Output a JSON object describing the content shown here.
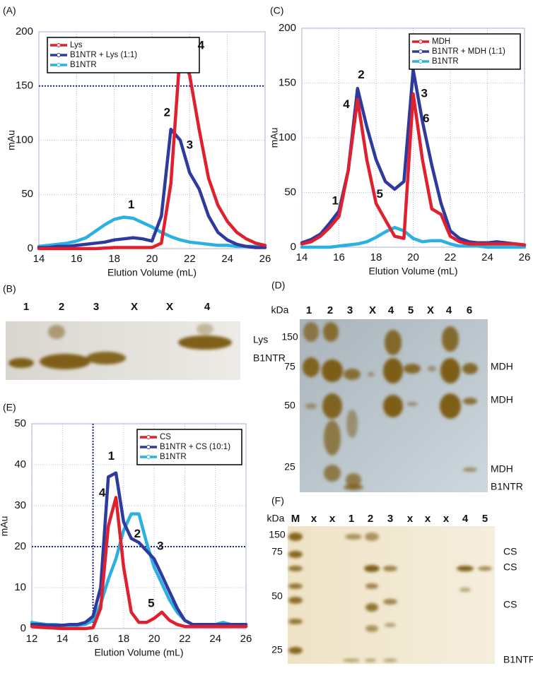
{
  "chart_data": [
    {
      "type": "line",
      "panel": "(A)",
      "xlabel": "Elution Volume (mL)",
      "ylabel": "mAu",
      "xlim": [
        14,
        26
      ],
      "ylim": [
        0,
        200
      ],
      "xticks": [
        14,
        16,
        18,
        20,
        22,
        24,
        26
      ],
      "yticks": [
        0,
        50,
        100,
        150,
        200
      ],
      "grid": true,
      "hline": 150,
      "legend": "upper left",
      "x": [
        14,
        14.5,
        15,
        15.5,
        16,
        16.5,
        17,
        17.5,
        18,
        18.5,
        19,
        19.5,
        20,
        20.5,
        21,
        21.5,
        22,
        22.5,
        23,
        23.5,
        24,
        24.5,
        25,
        25.5,
        26
      ],
      "series": [
        {
          "name": "Lys",
          "color": "#e0202e",
          "values": [
            0,
            0,
            0,
            0,
            0,
            0,
            0,
            0.5,
            1,
            1,
            1,
            1,
            1,
            5,
            60,
            183,
            160,
            110,
            65,
            40,
            25,
            15,
            9,
            5,
            3
          ]
        },
        {
          "name": "B1NTR + Lys (1:1)",
          "color": "#2e3b9c",
          "values": [
            1,
            1,
            2,
            2,
            3,
            4,
            5,
            6,
            8,
            9,
            10,
            9,
            7,
            30,
            110,
            100,
            70,
            55,
            30,
            15,
            8,
            4,
            2,
            1,
            1
          ]
        },
        {
          "name": "B1NTR",
          "color": "#2bb0e2",
          "values": [
            2,
            3,
            4,
            5,
            7,
            10,
            16,
            22,
            27,
            29,
            28,
            24,
            20,
            15,
            11,
            8,
            6,
            5,
            4,
            3,
            3,
            2,
            2,
            2,
            1
          ]
        }
      ],
      "annotations": [
        {
          "text": "1",
          "color": "#2bb0e2"
        },
        {
          "text": "2",
          "color": "#2e3b9c"
        },
        {
          "text": "3",
          "color": "#2e3b9c"
        },
        {
          "text": "4",
          "color": "#e0202e"
        }
      ]
    },
    {
      "type": "line",
      "panel": "(C)",
      "xlabel": "Elution Volume (mL)",
      "ylabel": "mAu",
      "xlim": [
        14,
        26
      ],
      "ylim": [
        0,
        200
      ],
      "xticks": [
        14,
        16,
        18,
        20,
        22,
        24,
        26
      ],
      "yticks": [
        0,
        50,
        100,
        150,
        200
      ],
      "grid": true,
      "legend": "upper right",
      "x": [
        14,
        14.5,
        15,
        15.5,
        16,
        16.5,
        17,
        17.5,
        18,
        18.5,
        19,
        19.5,
        20,
        20.5,
        21,
        21.5,
        22,
        22.5,
        23,
        23.5,
        24,
        24.5,
        25,
        25.5,
        26
      ],
      "series": [
        {
          "name": "MDH",
          "color": "#e0202e",
          "values": [
            3,
            5,
            10,
            18,
            28,
            70,
            135,
            80,
            40,
            25,
            10,
            8,
            140,
            80,
            35,
            30,
            10,
            5,
            3,
            3,
            3,
            3,
            3,
            3,
            2
          ]
        },
        {
          "name": "B1NTR + MDH (1:1)",
          "color": "#2e3b9c",
          "values": [
            4,
            7,
            12,
            22,
            33,
            70,
            145,
            110,
            80,
            60,
            53,
            60,
            162,
            115,
            75,
            40,
            15,
            8,
            5,
            4,
            4,
            5,
            4,
            3,
            2
          ]
        },
        {
          "name": "B1NTR",
          "color": "#2bb0e2",
          "values": [
            0,
            0,
            0,
            0,
            1,
            2,
            3,
            5,
            9,
            14,
            18,
            15,
            8,
            5,
            6,
            6,
            3,
            1,
            1,
            1,
            0,
            0,
            0,
            0,
            0
          ]
        }
      ],
      "annotations": [
        {
          "text": "1",
          "color": "#2e3b9c"
        },
        {
          "text": "2",
          "color": "#2e3b9c"
        },
        {
          "text": "3",
          "color": "#2e3b9c"
        },
        {
          "text": "4",
          "color": "#e0202e"
        },
        {
          "text": "5",
          "color": "#e0202e"
        },
        {
          "text": "6",
          "color": "#e0202e"
        }
      ]
    },
    {
      "type": "line",
      "panel": "(E)",
      "xlabel": "Elution Volume (mL)",
      "ylabel": "mAu",
      "xlim": [
        12,
        26
      ],
      "ylim": [
        0,
        50
      ],
      "xticks": [
        12,
        14,
        16,
        18,
        20,
        22,
        24,
        26
      ],
      "yticks": [
        0,
        10,
        20,
        30,
        40,
        50
      ],
      "grid": true,
      "hline": 20,
      "vline": 16,
      "legend": "upper right",
      "x": [
        12,
        12.5,
        13,
        13.5,
        14,
        14.5,
        15,
        15.5,
        16,
        16.5,
        17,
        17.5,
        18,
        18.5,
        19,
        19.5,
        20,
        20.5,
        21,
        21.5,
        22,
        22.5,
        23,
        23.5,
        24,
        24.5,
        25,
        25.5,
        26
      ],
      "series": [
        {
          "name": "CS",
          "color": "#e0202e",
          "values": [
            0.5,
            0.3,
            0.2,
            0.1,
            0,
            0,
            0,
            0,
            0.2,
            5,
            25,
            32,
            15,
            4,
            1.5,
            1.5,
            2.5,
            4,
            2,
            1,
            0.5,
            0.5,
            0.5,
            0.5,
            0.5,
            0.5,
            0.5,
            0.5,
            0.5
          ]
        },
        {
          "name": "B1NTR + CS (10:1)",
          "color": "#2e3b9c",
          "values": [
            1,
            1,
            0.8,
            0.8,
            0.8,
            1,
            1,
            1.5,
            3,
            10,
            37,
            38,
            26,
            22,
            21,
            19,
            17,
            13,
            9,
            5,
            2,
            1,
            1,
            1,
            1,
            1,
            1,
            1,
            1
          ]
        },
        {
          "name": "B1NTR",
          "color": "#2bb0e2",
          "values": [
            1.5,
            1.2,
            1,
            1,
            0.8,
            0.8,
            0.8,
            1,
            2,
            6,
            12,
            17,
            24,
            28,
            28,
            21,
            15,
            11,
            7,
            4,
            2,
            1,
            1,
            1,
            1,
            1.5,
            1,
            1,
            1
          ]
        }
      ],
      "annotations": [
        {
          "text": "1",
          "color": "#2e3b9c"
        },
        {
          "text": "2",
          "color": "#2e3b9c"
        },
        {
          "text": "3",
          "color": "#2e3b9c"
        },
        {
          "text": "4",
          "color": "#e0202e"
        },
        {
          "text": "5",
          "color": "#e0202e"
        }
      ]
    }
  ],
  "gels": [
    {
      "panel": "(B)",
      "lanes": [
        {
          "label": "1",
          "color": "#2bb0e2"
        },
        {
          "label": "2",
          "color": "#2e3b9c"
        },
        {
          "label": "3",
          "color": "#2e3b9c"
        },
        {
          "label": "X",
          "color": "#111111"
        },
        {
          "label": "X",
          "color": "#111111"
        },
        {
          "label": "4",
          "color": "#e0202e"
        }
      ],
      "right_labels": [
        "Lys",
        "B1NTR"
      ]
    },
    {
      "panel": "(D)",
      "unit": "kDa",
      "markers": [
        "150",
        "75",
        "50",
        "25"
      ],
      "lanes": [
        {
          "label": "1",
          "color": "#2e3b9c"
        },
        {
          "label": "2",
          "color": "#2e3b9c"
        },
        {
          "label": "3",
          "color": "#2e3b9c"
        },
        {
          "label": "X",
          "color": "#111111"
        },
        {
          "label": "4",
          "color": "#e0202e"
        },
        {
          "label": "5",
          "color": "#e0202e"
        },
        {
          "label": "X",
          "color": "#111111"
        },
        {
          "label": "4",
          "color": "#e0202e"
        },
        {
          "label": "6",
          "color": "#e0202e"
        }
      ],
      "right_labels": [
        "MDH",
        "MDH",
        "MDH",
        "B1NTR"
      ]
    },
    {
      "panel": "(F)",
      "unit": "kDa",
      "markers": [
        "150",
        "75",
        "50",
        "25"
      ],
      "lanes": [
        {
          "label": "M",
          "color": "#111111"
        },
        {
          "label": "x",
          "color": "#111111"
        },
        {
          "label": "x",
          "color": "#111111"
        },
        {
          "label": "1",
          "color": "#2e3b9c"
        },
        {
          "label": "2",
          "color": "#2e3b9c"
        },
        {
          "label": "3",
          "color": "#2e3b9c"
        },
        {
          "label": "x",
          "color": "#111111"
        },
        {
          "label": "x",
          "color": "#111111"
        },
        {
          "label": "x",
          "color": "#111111"
        },
        {
          "label": "4",
          "color": "#e0202e"
        },
        {
          "label": "5",
          "color": "#e0202e"
        }
      ],
      "right_labels": [
        "CS",
        "CS",
        "CS",
        "B1NTR"
      ]
    }
  ]
}
